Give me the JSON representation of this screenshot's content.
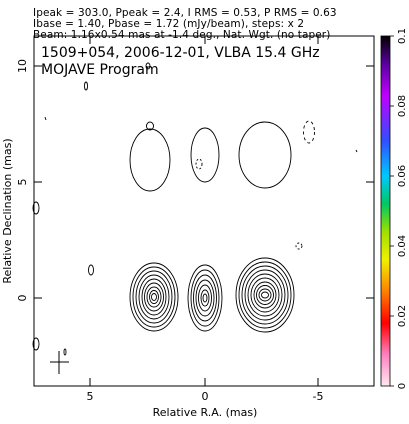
{
  "header": {
    "line1": "Ipeak = 303.0, Ppeak = 2.4, I RMS = 0.53, P RMS = 0.63",
    "line2": "Ibase = 1.40, Pbase = 1.72 (mJy/beam), steps: x 2",
    "line3": "Beam: 1.16x0.54 mas at -1.4 deg., Nat. Wgt. (no taper)",
    "line0": "Ipeak = 303.0, Ppeak = 2.4, I RMS = 0.53, P RMS = 0.63"
  },
  "plot": {
    "title_line1": "1509+054, 2006-12-01, VLBA 15.4 GHz",
    "title_line2": "MOJAVE Program",
    "xlabel": "Relative R.A. (mas)",
    "ylabel": "Relative Declination (mas)",
    "x_ticks": [
      "5",
      "0",
      "-5"
    ],
    "y_ticks": [
      "10",
      "5",
      "0"
    ]
  },
  "colorbar": {
    "ticks": [
      "0.1",
      "0.08",
      "0.06",
      "0.04",
      "0.02",
      "0"
    ],
    "colors_top_to_bottom": [
      "#000000",
      "#5a00a0",
      "#c000ff",
      "#3050ff",
      "#00c8ff",
      "#00c860",
      "#a0e000",
      "#f0f000",
      "#ff8000",
      "#ff0000",
      "#ff80c0",
      "#ffe0e8"
    ]
  }
}
